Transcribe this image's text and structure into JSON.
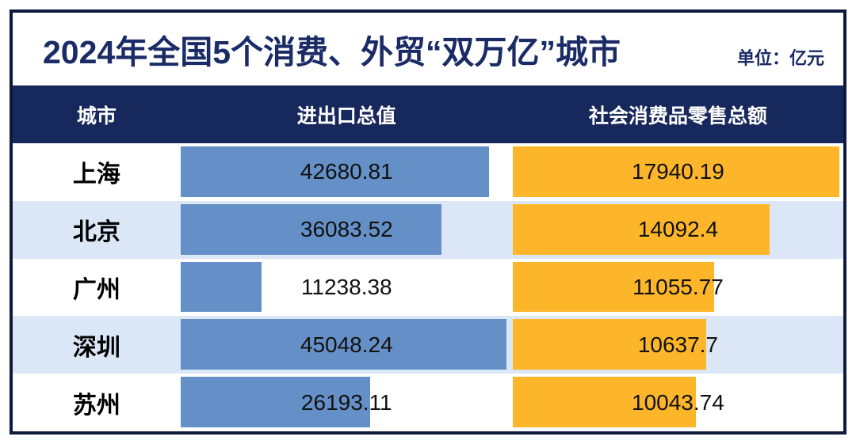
{
  "title": {
    "text": "2024年全国5个消费、外贸“双万亿”城市",
    "unit": "单位：亿元"
  },
  "table": {
    "headers": [
      "城市",
      "进出口总值",
      "社会消费品零售总额"
    ],
    "rows": [
      {
        "city": "上海",
        "import_export": "42680.81",
        "retail": "17940.19"
      },
      {
        "city": "北京",
        "import_export": "36083.52",
        "retail": "14092.4"
      },
      {
        "city": "广州",
        "import_export": "11238.38",
        "retail": "11055.77"
      },
      {
        "city": "深圳",
        "import_export": "45048.24",
        "retail": "10637.7"
      },
      {
        "city": "苏州",
        "import_export": "26193.11",
        "retail": "10043.74"
      }
    ]
  },
  "colors": {
    "frame_border": "#0e1b3d",
    "header_bg": "#17285c",
    "header_text": "#ffffff",
    "title_text": "#1a2b66",
    "row_bg": "#ffffff",
    "alt_row_bg": "#dbe6f7",
    "import_bar": "#6590c7",
    "retail_bar": "#fdb62a",
    "value_text": "#111111"
  },
  "chart_data": {
    "type": "bar",
    "orientation": "horizontal",
    "title": "2024年全国5个消费、外贸“双万亿”城市",
    "unit": "亿元",
    "categories": [
      "上海",
      "北京",
      "广州",
      "深圳",
      "苏州"
    ],
    "series": [
      {
        "name": "进出口总值",
        "values": [
          42680.81,
          36083.52,
          11238.38,
          45048.24,
          26193.11
        ],
        "color": "#6590c7",
        "axis_max": 45900
      },
      {
        "name": "社会消费品零售总额",
        "values": [
          17940.19,
          14092.4,
          11055.77,
          10637.7,
          10043.74
        ],
        "color": "#fdb62a",
        "axis_max": 18150
      }
    ],
    "legend": "none",
    "grid": false,
    "value_labels": "centered_in_column"
  }
}
